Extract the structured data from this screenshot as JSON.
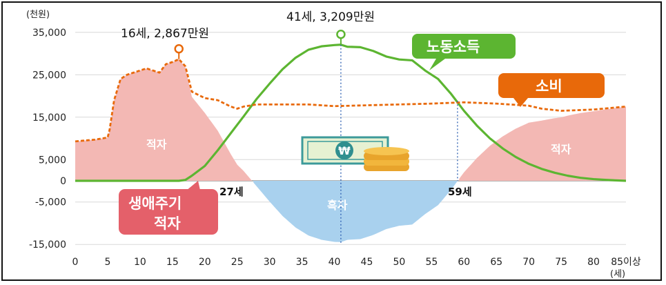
{
  "chart_data": {
    "type": "area",
    "y_unit_label": "(천원)",
    "x_unit_label": "(세)",
    "ylim": [
      -15000,
      35000
    ],
    "xlim": [
      0,
      85
    ],
    "y_ticks": [
      {
        "value": 35000,
        "label": "35,000"
      },
      {
        "value": 25000,
        "label": "25,000"
      },
      {
        "value": 15000,
        "label": "15,000"
      },
      {
        "value": 5000,
        "label": "5,000"
      },
      {
        "value": 0,
        "label": "0"
      },
      {
        "value": -5000,
        "label": "-5,000"
      },
      {
        "value": -15000,
        "label": "-15,000"
      }
    ],
    "x_ticks": [
      {
        "value": 0,
        "label": "0"
      },
      {
        "value": 5,
        "label": "5"
      },
      {
        "value": 10,
        "label": "10"
      },
      {
        "value": 15,
        "label": "15"
      },
      {
        "value": 20,
        "label": "20"
      },
      {
        "value": 25,
        "label": "25"
      },
      {
        "value": 30,
        "label": "30"
      },
      {
        "value": 35,
        "label": "35"
      },
      {
        "value": 40,
        "label": "40"
      },
      {
        "value": 45,
        "label": "45"
      },
      {
        "value": 50,
        "label": "50"
      },
      {
        "value": 55,
        "label": "55"
      },
      {
        "value": 60,
        "label": "60"
      },
      {
        "value": 65,
        "label": "65"
      },
      {
        "value": 70,
        "label": "70"
      },
      {
        "value": 75,
        "label": "75"
      },
      {
        "value": 80,
        "label": "80"
      },
      {
        "value": 85,
        "label": "85이상"
      }
    ],
    "series": [
      {
        "name": "노동소득",
        "color": "#5cb531",
        "x": [
          0,
          5,
          10,
          15,
          16,
          17,
          18,
          20,
          22,
          24,
          26,
          28,
          30,
          32,
          34,
          36,
          38,
          40,
          41,
          42,
          44,
          46,
          48,
          50,
          52,
          54,
          56,
          58,
          60,
          62,
          64,
          66,
          68,
          70,
          72,
          74,
          76,
          78,
          80,
          82,
          85
        ],
        "values": [
          0,
          0,
          0,
          0,
          0,
          200,
          1200,
          3500,
          7200,
          11200,
          15200,
          19300,
          22900,
          26300,
          29000,
          30900,
          31700,
          32000,
          32090,
          31600,
          31500,
          30600,
          29300,
          28600,
          28400,
          26000,
          24000,
          20500,
          16500,
          13000,
          10000,
          7600,
          5600,
          4000,
          2800,
          1900,
          1200,
          700,
          400,
          200,
          0
        ]
      },
      {
        "name": "소비",
        "color": "#e8690a",
        "x": [
          0,
          3,
          5,
          5.3,
          6,
          7,
          8,
          9,
          10,
          11,
          12,
          13,
          14,
          15,
          16,
          17,
          18,
          20,
          22,
          24,
          25,
          26,
          28,
          30,
          33,
          36,
          40,
          45,
          50,
          55,
          60,
          65,
          70,
          72,
          75,
          80,
          85
        ],
        "values": [
          9300,
          9700,
          10200,
          12000,
          19000,
          24000,
          25000,
          25500,
          26000,
          26500,
          26000,
          25500,
          27500,
          28000,
          28670,
          27000,
          21000,
          19500,
          19000,
          17500,
          17000,
          17500,
          18000,
          18000,
          18000,
          18000,
          17600,
          17800,
          18000,
          18200,
          18500,
          18200,
          17700,
          17000,
          16500,
          16800,
          17500
        ]
      }
    ],
    "regions": [
      {
        "name": "적자",
        "label": "적자",
        "color": "#f3b8b4"
      },
      {
        "name": "흑자",
        "label": "흑자",
        "color": "#a9d1ee"
      },
      {
        "name": "적자-노년",
        "label": "적자",
        "color": "#f3b8b4"
      }
    ],
    "annotations": {
      "consumption_peak": "16세, 2,867만원",
      "income_peak": "41세, 3,209만원",
      "surplus_start": "27세",
      "surplus_end": "59세",
      "income_label": "노동소득",
      "consumption_label": "소비",
      "lifecycle_deficit_line1": "생애주기",
      "lifecycle_deficit_line2": "적자"
    },
    "colors": {
      "income": "#5cb531",
      "consumption": "#e8690a",
      "deficit_fill": "#f3b8b4",
      "surplus_fill": "#a9d1ee",
      "lifecycle_badge": "#e4606a",
      "grid": "#d8d8d8"
    },
    "grid": true
  }
}
